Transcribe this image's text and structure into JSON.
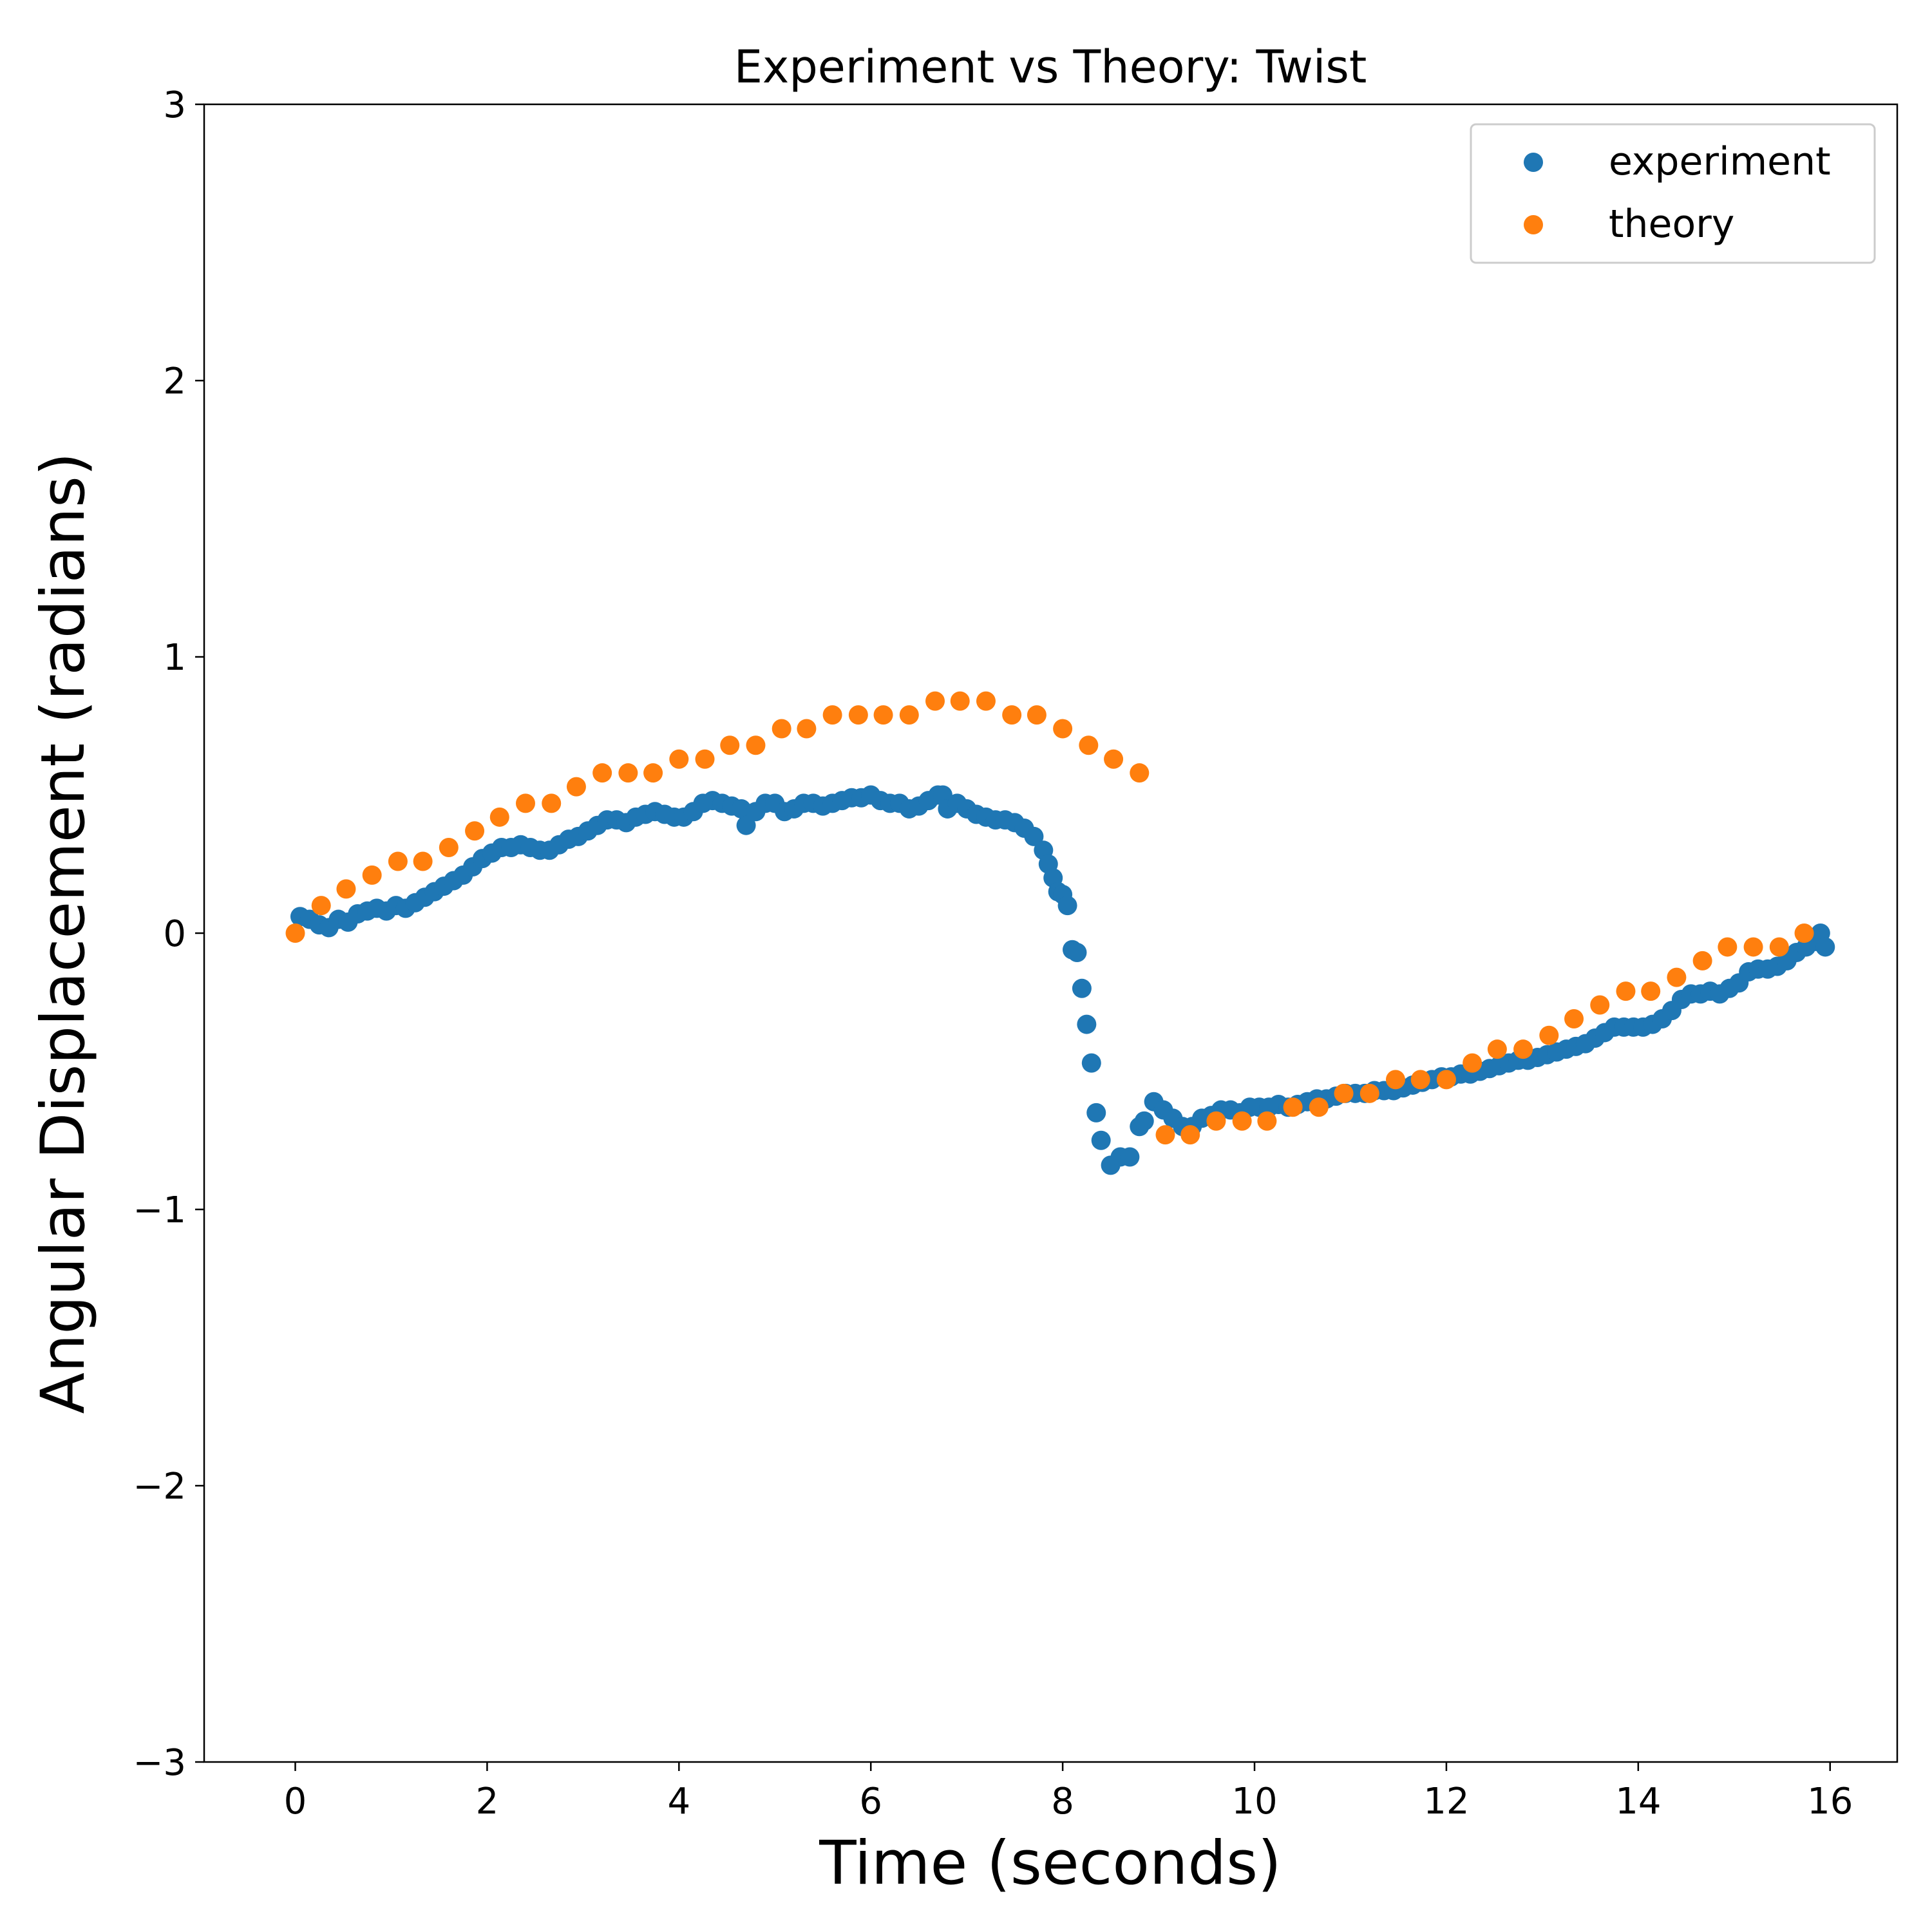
{
  "chart_data": {
    "type": "scatter",
    "title": "Experiment vs Theory: Twist",
    "xlabel": "Time (seconds)",
    "ylabel": "Angular Displacement (radians)",
    "xlim": [
      -0.95,
      16.7
    ],
    "ylim": [
      -3,
      3
    ],
    "xticks": [
      0,
      2,
      4,
      6,
      8,
      10,
      12,
      14,
      16
    ],
    "yticks": [
      -3,
      -2,
      -1,
      0,
      1,
      2,
      3
    ],
    "xtick_labels": [
      "0",
      "2",
      "4",
      "6",
      "8",
      "10",
      "12",
      "14",
      "16"
    ],
    "ytick_labels": [
      "−3",
      "−2",
      "−1",
      "0",
      "1",
      "2",
      "3"
    ],
    "grid": false,
    "legend_position": "top-right",
    "series": [
      {
        "name": "experiment",
        "color": "#1f77b4",
        "points": [
          [
            0.05,
            0.06
          ],
          [
            0.15,
            0.05
          ],
          [
            0.25,
            0.03
          ],
          [
            0.35,
            0.02
          ],
          [
            0.45,
            0.05
          ],
          [
            0.55,
            0.04
          ],
          [
            0.65,
            0.07
          ],
          [
            0.75,
            0.08
          ],
          [
            0.85,
            0.09
          ],
          [
            0.95,
            0.08
          ],
          [
            1.05,
            0.1
          ],
          [
            1.15,
            0.09
          ],
          [
            1.25,
            0.11
          ],
          [
            1.35,
            0.13
          ],
          [
            1.45,
            0.15
          ],
          [
            1.55,
            0.17
          ],
          [
            1.65,
            0.19
          ],
          [
            1.75,
            0.21
          ],
          [
            1.85,
            0.24
          ],
          [
            1.95,
            0.27
          ],
          [
            2.05,
            0.29
          ],
          [
            2.15,
            0.31
          ],
          [
            2.25,
            0.31
          ],
          [
            2.35,
            0.32
          ],
          [
            2.45,
            0.31
          ],
          [
            2.55,
            0.3
          ],
          [
            2.65,
            0.3
          ],
          [
            2.75,
            0.32
          ],
          [
            2.85,
            0.34
          ],
          [
            2.95,
            0.35
          ],
          [
            3.05,
            0.37
          ],
          [
            3.15,
            0.39
          ],
          [
            3.25,
            0.41
          ],
          [
            3.35,
            0.41
          ],
          [
            3.45,
            0.4
          ],
          [
            3.55,
            0.42
          ],
          [
            3.65,
            0.43
          ],
          [
            3.75,
            0.44
          ],
          [
            3.85,
            0.43
          ],
          [
            3.95,
            0.42
          ],
          [
            4.05,
            0.42
          ],
          [
            4.15,
            0.44
          ],
          [
            4.25,
            0.47
          ],
          [
            4.35,
            0.48
          ],
          [
            4.45,
            0.47
          ],
          [
            4.55,
            0.46
          ],
          [
            4.65,
            0.45
          ],
          [
            4.7,
            0.39
          ],
          [
            4.8,
            0.44
          ],
          [
            4.9,
            0.47
          ],
          [
            5.0,
            0.47
          ],
          [
            5.1,
            0.44
          ],
          [
            5.2,
            0.45
          ],
          [
            5.3,
            0.47
          ],
          [
            5.4,
            0.47
          ],
          [
            5.5,
            0.46
          ],
          [
            5.6,
            0.47
          ],
          [
            5.7,
            0.48
          ],
          [
            5.8,
            0.49
          ],
          [
            5.9,
            0.49
          ],
          [
            6.0,
            0.5
          ],
          [
            6.1,
            0.48
          ],
          [
            6.2,
            0.47
          ],
          [
            6.3,
            0.47
          ],
          [
            6.4,
            0.45
          ],
          [
            6.5,
            0.46
          ],
          [
            6.6,
            0.48
          ],
          [
            6.7,
            0.5
          ],
          [
            6.75,
            0.5
          ],
          [
            6.8,
            0.45
          ],
          [
            6.9,
            0.47
          ],
          [
            7.0,
            0.45
          ],
          [
            7.1,
            0.43
          ],
          [
            7.2,
            0.42
          ],
          [
            7.3,
            0.41
          ],
          [
            7.4,
            0.41
          ],
          [
            7.5,
            0.4
          ],
          [
            7.6,
            0.38
          ],
          [
            7.7,
            0.35
          ],
          [
            7.8,
            0.3
          ],
          [
            7.85,
            0.25
          ],
          [
            7.9,
            0.2
          ],
          [
            7.95,
            0.15
          ],
          [
            8.0,
            0.14
          ],
          [
            8.05,
            0.1
          ],
          [
            8.1,
            -0.06
          ],
          [
            8.15,
            -0.07
          ],
          [
            8.2,
            -0.2
          ],
          [
            8.25,
            -0.33
          ],
          [
            8.3,
            -0.47
          ],
          [
            8.35,
            -0.65
          ],
          [
            8.4,
            -0.75
          ],
          [
            8.5,
            -0.84
          ],
          [
            8.6,
            -0.81
          ],
          [
            8.7,
            -0.81
          ],
          [
            8.8,
            -0.7
          ],
          [
            8.85,
            -0.68
          ],
          [
            8.95,
            -0.61
          ],
          [
            9.05,
            -0.64
          ],
          [
            9.15,
            -0.67
          ],
          [
            9.25,
            -0.7
          ],
          [
            9.35,
            -0.7
          ],
          [
            9.45,
            -0.67
          ],
          [
            9.55,
            -0.66
          ],
          [
            9.65,
            -0.64
          ],
          [
            9.75,
            -0.64
          ],
          [
            9.85,
            -0.65
          ],
          [
            9.95,
            -0.63
          ],
          [
            10.05,
            -0.63
          ],
          [
            10.15,
            -0.63
          ],
          [
            10.25,
            -0.62
          ],
          [
            10.35,
            -0.63
          ],
          [
            10.45,
            -0.62
          ],
          [
            10.55,
            -0.61
          ],
          [
            10.65,
            -0.6
          ],
          [
            10.75,
            -0.6
          ],
          [
            10.85,
            -0.59
          ],
          [
            10.95,
            -0.58
          ],
          [
            11.05,
            -0.58
          ],
          [
            11.15,
            -0.58
          ],
          [
            11.25,
            -0.57
          ],
          [
            11.35,
            -0.57
          ],
          [
            11.45,
            -0.57
          ],
          [
            11.55,
            -0.56
          ],
          [
            11.65,
            -0.55
          ],
          [
            11.75,
            -0.54
          ],
          [
            11.85,
            -0.53
          ],
          [
            11.95,
            -0.52
          ],
          [
            12.05,
            -0.52
          ],
          [
            12.15,
            -0.51
          ],
          [
            12.25,
            -0.51
          ],
          [
            12.35,
            -0.5
          ],
          [
            12.45,
            -0.49
          ],
          [
            12.55,
            -0.48
          ],
          [
            12.65,
            -0.47
          ],
          [
            12.75,
            -0.46
          ],
          [
            12.85,
            -0.46
          ],
          [
            12.95,
            -0.45
          ],
          [
            13.05,
            -0.44
          ],
          [
            13.15,
            -0.43
          ],
          [
            13.25,
            -0.42
          ],
          [
            13.35,
            -0.41
          ],
          [
            13.45,
            -0.4
          ],
          [
            13.55,
            -0.38
          ],
          [
            13.65,
            -0.36
          ],
          [
            13.75,
            -0.34
          ],
          [
            13.85,
            -0.34
          ],
          [
            13.95,
            -0.34
          ],
          [
            14.05,
            -0.34
          ],
          [
            14.15,
            -0.33
          ],
          [
            14.25,
            -0.31
          ],
          [
            14.35,
            -0.28
          ],
          [
            14.45,
            -0.24
          ],
          [
            14.55,
            -0.22
          ],
          [
            14.65,
            -0.22
          ],
          [
            14.75,
            -0.21
          ],
          [
            14.85,
            -0.22
          ],
          [
            14.95,
            -0.2
          ],
          [
            15.05,
            -0.18
          ],
          [
            15.15,
            -0.14
          ],
          [
            15.25,
            -0.13
          ],
          [
            15.35,
            -0.13
          ],
          [
            15.45,
            -0.12
          ],
          [
            15.55,
            -0.1
          ],
          [
            15.65,
            -0.07
          ],
          [
            15.75,
            -0.05
          ],
          [
            15.85,
            -0.03
          ],
          [
            15.9,
            0.0
          ],
          [
            15.95,
            -0.05
          ]
        ]
      },
      {
        "name": "theory",
        "color": "#ff7f0e",
        "points": [
          [
            0.0,
            0.0
          ],
          [
            0.27,
            0.1
          ],
          [
            0.53,
            0.16
          ],
          [
            0.8,
            0.21
          ],
          [
            1.07,
            0.26
          ],
          [
            1.33,
            0.26
          ],
          [
            1.6,
            0.31
          ],
          [
            1.87,
            0.37
          ],
          [
            2.13,
            0.42
          ],
          [
            2.4,
            0.47
          ],
          [
            2.67,
            0.47
          ],
          [
            2.93,
            0.53
          ],
          [
            3.2,
            0.58
          ],
          [
            3.47,
            0.58
          ],
          [
            3.73,
            0.58
          ],
          [
            4.0,
            0.63
          ],
          [
            4.27,
            0.63
          ],
          [
            4.53,
            0.68
          ],
          [
            4.8,
            0.68
          ],
          [
            5.07,
            0.74
          ],
          [
            5.33,
            0.74
          ],
          [
            5.6,
            0.79
          ],
          [
            5.87,
            0.79
          ],
          [
            6.13,
            0.79
          ],
          [
            6.4,
            0.79
          ],
          [
            6.67,
            0.84
          ],
          [
            6.93,
            0.84
          ],
          [
            7.2,
            0.84
          ],
          [
            7.47,
            0.79
          ],
          [
            7.73,
            0.79
          ],
          [
            8.0,
            0.74
          ],
          [
            8.27,
            0.68
          ],
          [
            8.53,
            0.63
          ],
          [
            8.8,
            0.58
          ],
          [
            9.07,
            -0.73
          ],
          [
            9.33,
            -0.73
          ],
          [
            9.6,
            -0.68
          ],
          [
            9.87,
            -0.68
          ],
          [
            10.13,
            -0.68
          ],
          [
            10.4,
            -0.63
          ],
          [
            10.67,
            -0.63
          ],
          [
            10.93,
            -0.58
          ],
          [
            11.2,
            -0.58
          ],
          [
            11.47,
            -0.53
          ],
          [
            11.73,
            -0.53
          ],
          [
            12.0,
            -0.53
          ],
          [
            12.27,
            -0.47
          ],
          [
            12.53,
            -0.42
          ],
          [
            12.8,
            -0.42
          ],
          [
            13.07,
            -0.37
          ],
          [
            13.33,
            -0.31
          ],
          [
            13.6,
            -0.26
          ],
          [
            13.87,
            -0.21
          ],
          [
            14.13,
            -0.21
          ],
          [
            14.4,
            -0.16
          ],
          [
            14.67,
            -0.1
          ],
          [
            14.93,
            -0.05
          ],
          [
            15.2,
            -0.05
          ],
          [
            15.47,
            -0.05
          ],
          [
            15.73,
            0.0
          ]
        ]
      }
    ]
  }
}
